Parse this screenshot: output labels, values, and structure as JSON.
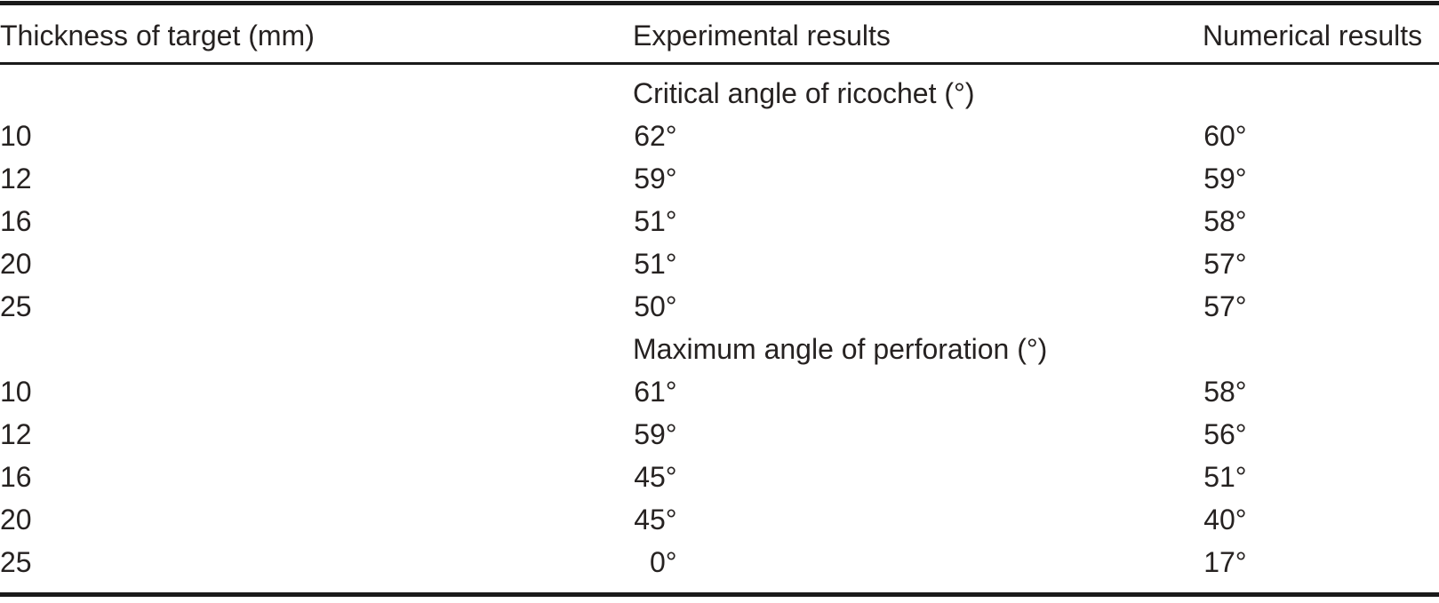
{
  "table": {
    "columns": [
      "Thickness of target (mm)",
      "Experimental results",
      "Numerical results"
    ],
    "sections": [
      {
        "label": "Critical angle of ricochet (°)",
        "rows": [
          {
            "thickness": "10",
            "experimental": "62°",
            "numerical": "60°"
          },
          {
            "thickness": "12",
            "experimental": "59°",
            "numerical": "59°"
          },
          {
            "thickness": "16",
            "experimental": "51°",
            "numerical": "58°"
          },
          {
            "thickness": "20",
            "experimental": "51°",
            "numerical": "57°"
          },
          {
            "thickness": "25",
            "experimental": "50°",
            "numerical": "57°"
          }
        ]
      },
      {
        "label": "Maximum angle of perforation (°)",
        "rows": [
          {
            "thickness": "10",
            "experimental": "61°",
            "numerical": "58°"
          },
          {
            "thickness": "12",
            "experimental": "59°",
            "numerical": "56°"
          },
          {
            "thickness": "16",
            "experimental": "45°",
            "numerical": "51°"
          },
          {
            "thickness": "20",
            "experimental": "45°",
            "numerical": "40°"
          },
          {
            "thickness": "25",
            "experimental": "0°",
            "numerical": "17°"
          }
        ]
      }
    ]
  },
  "colors": {
    "background": "#ffffff",
    "text": "#262221",
    "rule": "#1a1a1a"
  }
}
